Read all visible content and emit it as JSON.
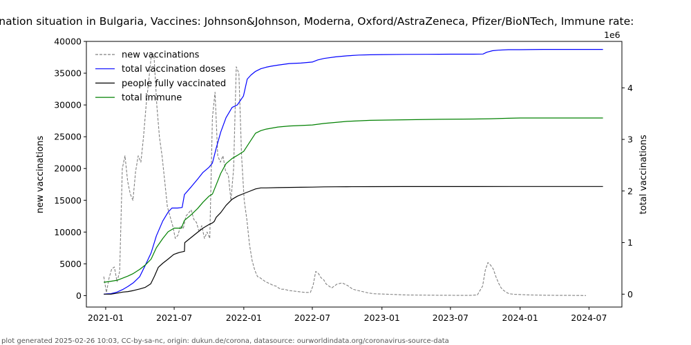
{
  "chart_data": {
    "type": "line",
    "title": "ination situation in Bulgaria, Vaccines: Johnson&Johnson, Moderna, Oxford/AstraZeneca, Pfizer/BioNTech, Immune rate:",
    "xlabel": "",
    "ylabel_left": "new vaccinations",
    "ylabel_right": "total vaccinations",
    "right_offset_text": "1e6",
    "xlim": [
      "2020-11-11",
      "2024-09-26"
    ],
    "ylim_left": [
      -1800,
      40000
    ],
    "ylim_right": [
      -0.25,
      4.9
    ],
    "x_ticks": [
      "2021-01",
      "2021-07",
      "2022-01",
      "2022-07",
      "2023-01",
      "2023-07",
      "2024-01",
      "2024-07"
    ],
    "y_ticks_left": [
      0,
      5000,
      10000,
      15000,
      20000,
      25000,
      30000,
      35000,
      40000
    ],
    "y_ticks_right": [
      0,
      1,
      2,
      3,
      4
    ],
    "grid": false,
    "legend_position": "top-left",
    "footer": "plot generated 2025-02-26 10:03, CC-by-sa-nc, origin: dukun.de/corona, datasource: ourworldindata.org/coronavirus-source-data",
    "series": [
      {
        "name": "new vaccinations",
        "axis": "left",
        "color": "#808080",
        "style": "dashed",
        "x": [
          "2020-12-27",
          "2021-01-03",
          "2021-01-10",
          "2021-01-17",
          "2021-01-24",
          "2021-01-31",
          "2021-02-07",
          "2021-02-14",
          "2021-02-21",
          "2021-02-28",
          "2021-03-07",
          "2021-03-14",
          "2021-03-21",
          "2021-03-28",
          "2021-04-04",
          "2021-04-11",
          "2021-04-18",
          "2021-04-25",
          "2021-05-02",
          "2021-05-09",
          "2021-05-16",
          "2021-05-23",
          "2021-05-30",
          "2021-06-06",
          "2021-06-13",
          "2021-06-20",
          "2021-06-27",
          "2021-07-04",
          "2021-07-11",
          "2021-07-18",
          "2021-07-25",
          "2021-08-01",
          "2021-08-08",
          "2021-08-15",
          "2021-08-22",
          "2021-08-29",
          "2021-09-05",
          "2021-09-12",
          "2021-09-19",
          "2021-09-26",
          "2021-10-03",
          "2021-10-10",
          "2021-10-17",
          "2021-10-24",
          "2021-10-31",
          "2021-11-07",
          "2021-11-14",
          "2021-11-21",
          "2021-11-28",
          "2021-12-05",
          "2021-12-12",
          "2021-12-19",
          "2021-12-26",
          "2022-01-02",
          "2022-01-09",
          "2022-01-16",
          "2022-01-23",
          "2022-01-30",
          "2022-02-06",
          "2022-02-13",
          "2022-02-20",
          "2022-02-27",
          "2022-03-06",
          "2022-03-13",
          "2022-03-20",
          "2022-03-27",
          "2022-04-03",
          "2022-04-10",
          "2022-04-17",
          "2022-04-24",
          "2022-05-01",
          "2022-05-15",
          "2022-05-29",
          "2022-06-12",
          "2022-06-26",
          "2022-07-03",
          "2022-07-10",
          "2022-07-17",
          "2022-07-24",
          "2022-07-31",
          "2022-08-07",
          "2022-08-14",
          "2022-08-21",
          "2022-09-04",
          "2022-09-18",
          "2022-10-02",
          "2022-10-16",
          "2022-10-30",
          "2022-11-13",
          "2022-11-27",
          "2022-12-11",
          "2023-01-01",
          "2023-01-22",
          "2023-02-12",
          "2023-03-05",
          "2023-03-26",
          "2023-04-16",
          "2023-05-07",
          "2023-05-28",
          "2023-06-18",
          "2023-07-09",
          "2023-07-30",
          "2023-08-20",
          "2023-09-10",
          "2023-09-24",
          "2023-10-01",
          "2023-10-08",
          "2023-10-15",
          "2023-10-22",
          "2023-10-29",
          "2023-11-05",
          "2023-11-12",
          "2023-11-19",
          "2023-11-26",
          "2023-12-03",
          "2023-12-17",
          "2024-01-07",
          "2024-01-28",
          "2024-02-18",
          "2024-03-10",
          "2024-03-31",
          "2024-04-21",
          "2024-05-12",
          "2024-06-02",
          "2024-06-23"
        ],
        "values": [
          3000,
          500,
          2800,
          4200,
          4500,
          2200,
          3800,
          20000,
          22000,
          18000,
          16000,
          15000,
          19500,
          22000,
          21000,
          25000,
          30000,
          34000,
          38000,
          37500,
          30000,
          25000,
          22000,
          18000,
          14000,
          12500,
          11000,
          9000,
          9500,
          11000,
          10500,
          12500,
          13000,
          13500,
          12000,
          11500,
          10000,
          11000,
          9000,
          10000,
          9000,
          28000,
          32000,
          22000,
          21000,
          22000,
          19500,
          19000,
          15000,
          20000,
          36000,
          35000,
          22000,
          15000,
          12000,
          8000,
          5500,
          4000,
          3000,
          2800,
          2500,
          2200,
          2000,
          1800,
          1600,
          1500,
          1200,
          1000,
          1000,
          900,
          800,
          700,
          600,
          500,
          500,
          1600,
          3800,
          3500,
          2800,
          2500,
          1800,
          1500,
          1200,
          1800,
          2000,
          1600,
          1000,
          800,
          600,
          400,
          300,
          250,
          200,
          150,
          100,
          90,
          80,
          70,
          60,
          60,
          50,
          40,
          40,
          100,
          1500,
          4000,
          5200,
          4800,
          4200,
          3000,
          2000,
          1200,
          800,
          500,
          300,
          200,
          150,
          100,
          80,
          60,
          50,
          40,
          30,
          20,
          15
        ]
      },
      {
        "name": "total vaccination doses",
        "axis": "right",
        "color": "#0000ff",
        "style": "solid",
        "x": [
          "2020-12-27",
          "2021-01-05",
          "2021-01-15",
          "2021-01-31",
          "2021-02-15",
          "2021-03-01",
          "2021-03-15",
          "2021-04-01",
          "2021-04-15",
          "2021-05-01",
          "2021-05-15",
          "2021-06-01",
          "2021-06-15",
          "2021-06-25",
          "2021-07-01",
          "2021-07-10",
          "2021-07-22",
          "2021-07-28",
          "2021-08-15",
          "2021-09-01",
          "2021-09-15",
          "2021-10-01",
          "2021-10-10",
          "2021-10-20",
          "2021-11-01",
          "2021-11-15",
          "2021-12-01",
          "2021-12-15",
          "2021-12-31",
          "2022-01-10",
          "2022-01-20",
          "2022-02-01",
          "2022-02-15",
          "2022-03-01",
          "2022-03-15",
          "2022-04-01",
          "2022-05-01",
          "2022-06-01",
          "2022-07-01",
          "2022-07-15",
          "2022-08-01",
          "2022-09-01",
          "2022-10-01",
          "2022-11-01",
          "2022-12-01",
          "2023-01-01",
          "2023-03-01",
          "2023-05-01",
          "2023-07-01",
          "2023-09-01",
          "2023-09-25",
          "2023-10-05",
          "2023-10-20",
          "2023-11-05",
          "2023-12-01",
          "2024-01-01",
          "2024-03-01",
          "2024-05-01",
          "2024-07-01",
          "2024-08-07"
        ],
        "values": [
          0.0,
          0.005,
          0.01,
          0.04,
          0.09,
          0.15,
          0.22,
          0.34,
          0.55,
          0.8,
          1.13,
          1.42,
          1.59,
          1.67,
          1.67,
          1.67,
          1.68,
          1.93,
          2.08,
          2.23,
          2.36,
          2.46,
          2.54,
          2.83,
          3.14,
          3.42,
          3.62,
          3.67,
          3.84,
          4.17,
          4.25,
          4.32,
          4.37,
          4.4,
          4.42,
          4.44,
          4.47,
          4.48,
          4.5,
          4.54,
          4.57,
          4.6,
          4.62,
          4.635,
          4.64,
          4.645,
          4.648,
          4.65,
          4.652,
          4.653,
          4.655,
          4.69,
          4.72,
          4.73,
          4.74,
          4.74,
          4.745,
          4.745,
          4.745,
          4.745
        ]
      },
      {
        "name": "people fully vaccinated",
        "axis": "right",
        "color": "#000000",
        "style": "solid",
        "x": [
          "2020-12-27",
          "2021-01-15",
          "2021-02-01",
          "2021-02-15",
          "2021-03-01",
          "2021-03-15",
          "2021-04-01",
          "2021-04-15",
          "2021-04-30",
          "2021-05-10",
          "2021-05-20",
          "2021-06-01",
          "2021-06-15",
          "2021-06-30",
          "2021-07-15",
          "2021-07-28",
          "2021-07-29",
          "2021-08-15",
          "2021-09-01",
          "2021-09-15",
          "2021-10-01",
          "2021-10-10",
          "2021-10-15",
          "2021-10-20",
          "2021-11-01",
          "2021-11-15",
          "2021-12-01",
          "2021-12-15",
          "2022-01-01",
          "2022-01-15",
          "2022-02-01",
          "2022-02-15",
          "2022-03-01",
          "2022-04-01",
          "2022-05-01",
          "2022-06-01",
          "2022-07-01",
          "2022-08-01",
          "2022-09-01",
          "2022-10-01",
          "2022-12-01",
          "2023-03-01",
          "2023-06-01",
          "2023-09-01",
          "2023-12-01",
          "2024-03-01",
          "2024-06-01",
          "2024-08-07"
        ],
        "values": [
          0.0,
          0.0,
          0.02,
          0.04,
          0.05,
          0.07,
          0.1,
          0.13,
          0.2,
          0.35,
          0.52,
          0.6,
          0.68,
          0.77,
          0.81,
          0.83,
          1.0,
          1.1,
          1.2,
          1.28,
          1.35,
          1.38,
          1.41,
          1.49,
          1.58,
          1.72,
          1.84,
          1.9,
          1.95,
          1.99,
          2.04,
          2.06,
          2.06,
          2.065,
          2.07,
          2.072,
          2.075,
          2.08,
          2.082,
          2.083,
          2.084,
          2.085,
          2.086,
          2.086,
          2.087,
          2.087,
          2.087,
          2.087
        ]
      },
      {
        "name": "total immune",
        "axis": "right",
        "color": "#008000",
        "style": "solid",
        "x": [
          "2020-12-27",
          "2021-01-15",
          "2021-02-01",
          "2021-02-15",
          "2021-03-01",
          "2021-03-15",
          "2021-04-01",
          "2021-04-15",
          "2021-05-01",
          "2021-05-15",
          "2021-06-01",
          "2021-06-15",
          "2021-07-01",
          "2021-07-20",
          "2021-07-28",
          "2021-08-15",
          "2021-09-01",
          "2021-09-15",
          "2021-10-01",
          "2021-10-10",
          "2021-10-20",
          "2021-11-01",
          "2021-11-15",
          "2021-12-01",
          "2021-12-15",
          "2022-01-01",
          "2022-01-15",
          "2022-02-01",
          "2022-02-15",
          "2022-03-01",
          "2022-04-01",
          "2022-05-01",
          "2022-06-01",
          "2022-07-01",
          "2022-08-01",
          "2022-09-01",
          "2022-10-01",
          "2022-12-01",
          "2023-03-01",
          "2023-06-01",
          "2023-09-01",
          "2023-10-15",
          "2023-12-01",
          "2024-01-01",
          "2024-03-01",
          "2024-06-01",
          "2024-08-07"
        ],
        "values": [
          0.23,
          0.25,
          0.27,
          0.31,
          0.35,
          0.4,
          0.48,
          0.56,
          0.68,
          0.9,
          1.08,
          1.21,
          1.28,
          1.28,
          1.43,
          1.54,
          1.66,
          1.78,
          1.9,
          1.94,
          2.12,
          2.34,
          2.53,
          2.63,
          2.69,
          2.77,
          2.93,
          3.12,
          3.17,
          3.2,
          3.24,
          3.26,
          3.27,
          3.28,
          3.31,
          3.33,
          3.35,
          3.37,
          3.38,
          3.39,
          3.395,
          3.4,
          3.41,
          3.415,
          3.415,
          3.415,
          3.415
        ]
      }
    ]
  }
}
